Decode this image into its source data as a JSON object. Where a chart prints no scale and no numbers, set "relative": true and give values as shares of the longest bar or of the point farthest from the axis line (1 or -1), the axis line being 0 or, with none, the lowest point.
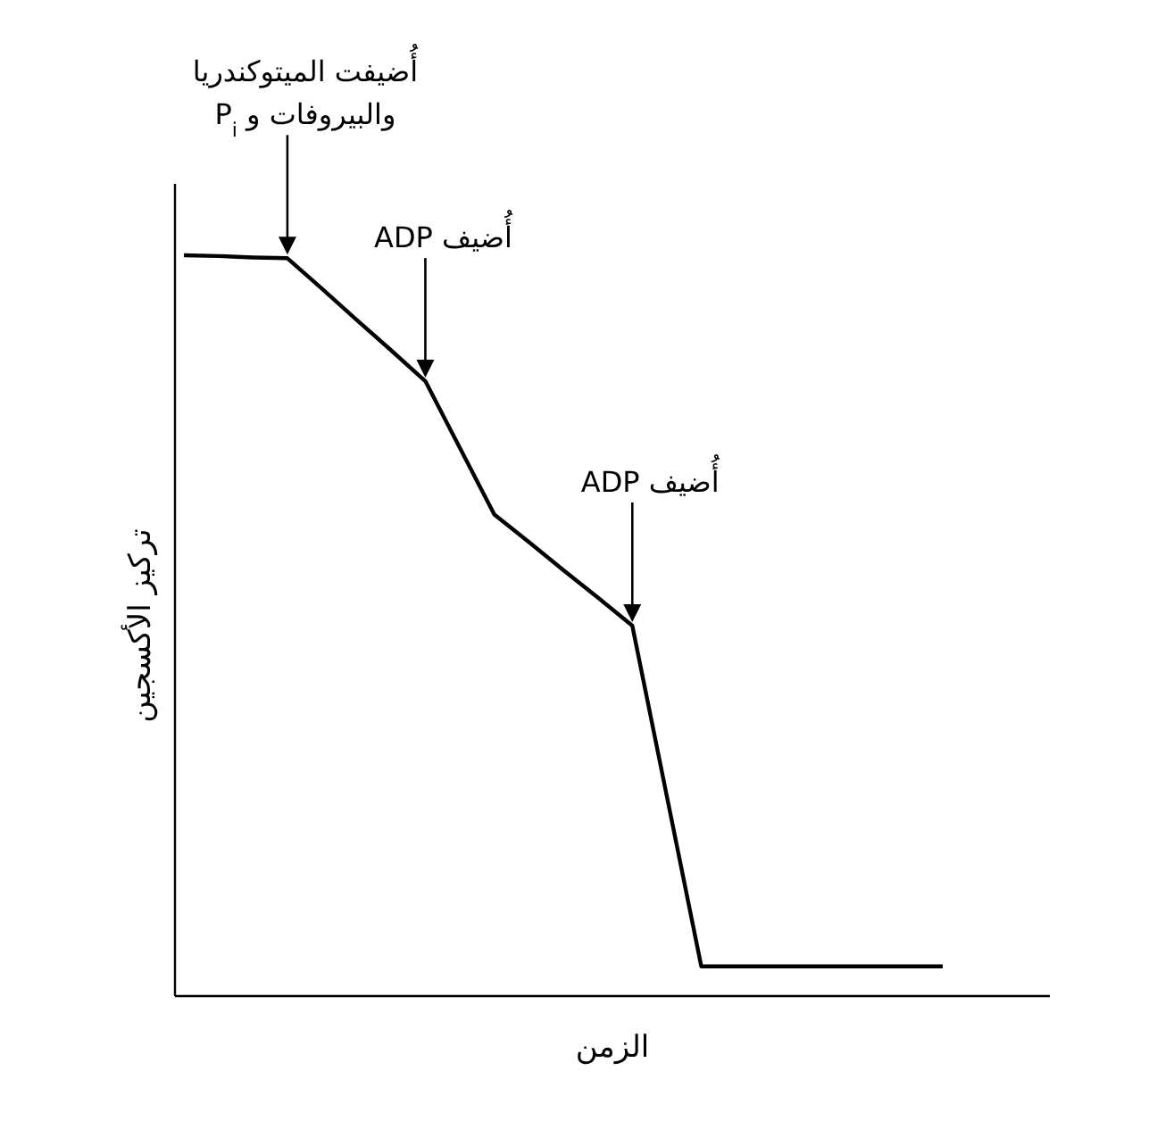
{
  "chart_data": {
    "type": "line",
    "relative": true,
    "xlabel": "الزمن",
    "ylabel": "تركيز الأكسجين",
    "categories": [
      null,
      null,
      null,
      null,
      null,
      null,
      null,
      null,
      null,
      null,
      null,
      null,
      null,
      null,
      null,
      null,
      null,
      null,
      null,
      null,
      null,
      null,
      null
    ],
    "marker": "none",
    "line_style": "solid",
    "series": [
      {
        "color": "#000000",
        "values": [
          1,
          0.999,
          0.997,
          0.996,
          0.955,
          0.913,
          0.872,
          0.83,
          0.74,
          0.65,
          0.613,
          0.575,
          0.538,
          0.5,
          0.27,
          0.04,
          0.04,
          0.04,
          0.04,
          0.04,
          0.04,
          0.04,
          0.04
        ]
      }
    ],
    "annotations": [
      "أُضيفت الميتوكندريا\nوالبيروفات و P$_{i}$",
      "أُضيف ADP",
      "أُضيف ADP"
    ]
  }
}
